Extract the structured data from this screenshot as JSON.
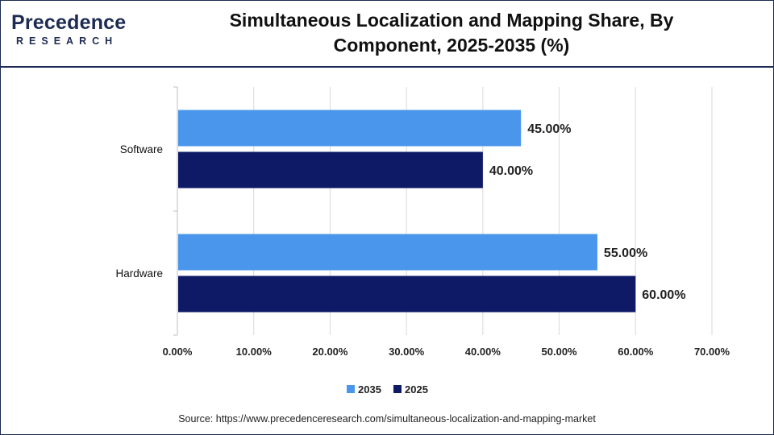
{
  "header": {
    "logo_word": "Precedence",
    "logo_sub": "RESEARCH",
    "title_line1": "Simultaneous Localization and Mapping Share, By",
    "title_line2": "Component, 2025-2035 (%)"
  },
  "footer": {
    "source": "Source: https://www.precedenceresearch.com/simultaneous-localization-and-mapping-market"
  },
  "colors": {
    "series_2035": "#4a96ec",
    "series_2025": "#0f1a66",
    "grid": "#d9d9d9",
    "axis": "#bfbfbf"
  },
  "chart_data": {
    "type": "bar",
    "orientation": "horizontal",
    "categories": [
      "Software",
      "Hardware"
    ],
    "series": [
      {
        "name": "2035",
        "values": [
          45.0,
          55.0
        ],
        "labels": [
          "45.00%",
          "55.00%"
        ]
      },
      {
        "name": "2025",
        "values": [
          40.0,
          60.0
        ],
        "labels": [
          "40.00%",
          "60.00%"
        ]
      }
    ],
    "xlim": [
      0,
      70
    ],
    "xticks": [
      0,
      10,
      20,
      30,
      40,
      50,
      60,
      70
    ],
    "xtick_labels": [
      "0.00%",
      "10.00%",
      "20.00%",
      "30.00%",
      "40.00%",
      "50.00%",
      "60.00%",
      "70.00%"
    ],
    "grid": true,
    "legend_position": "bottom"
  }
}
